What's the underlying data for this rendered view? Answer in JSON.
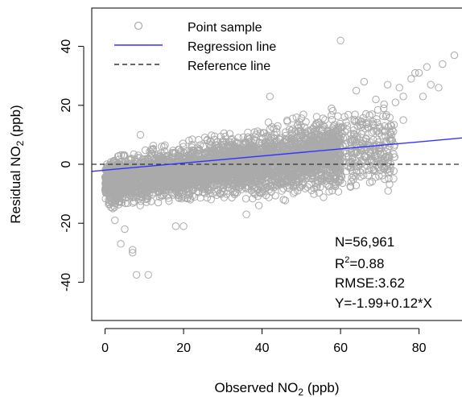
{
  "chart_data": {
    "type": "scatter",
    "xlabel": {
      "pre": "Observed NO",
      "sub": "2",
      "post": " (ppb)"
    },
    "ylabel": {
      "pre": "Residual NO",
      "sub": "2",
      "post": " (ppb)"
    },
    "xlim": [
      -3.4,
      93
    ],
    "ylim": [
      -53,
      53
    ],
    "xticks": [
      0,
      20,
      40,
      60,
      80
    ],
    "yticks": [
      -40,
      -20,
      0,
      20,
      40
    ],
    "grid": false,
    "legend": {
      "placement": "top-left",
      "entries": [
        {
          "label": "Point sample",
          "kind": "point",
          "color": "#aaaaaa"
        },
        {
          "label": "Regression line",
          "kind": "line",
          "color": "#3333ff"
        },
        {
          "label": "Reference line",
          "kind": "dashed",
          "color": "#333333"
        }
      ]
    },
    "regression": {
      "intercept": -1.99,
      "slope": 0.12,
      "color": "#3333ff"
    },
    "reference": {
      "y": 0,
      "color": "#333333"
    },
    "stats": {
      "n": "N=56,961",
      "r2": {
        "pre": "R",
        "sup": "2",
        "post": "=0.88"
      },
      "rmse": "RMSE:3.62",
      "eq": "Y=-1.99+0.12*X"
    },
    "point_color": "#aaaaaa",
    "highlight_points": [
      {
        "x": 8,
        "y": -37.5
      },
      {
        "x": 4,
        "y": -27
      },
      {
        "x": 2.5,
        "y": -19
      },
      {
        "x": 7,
        "y": -29
      },
      {
        "x": 7,
        "y": -30
      },
      {
        "x": 11,
        "y": -37.5
      },
      {
        "x": 60,
        "y": 42
      },
      {
        "x": 89,
        "y": 37
      },
      {
        "x": 86,
        "y": 34
      },
      {
        "x": 82,
        "y": 33
      },
      {
        "x": 80,
        "y": 31
      },
      {
        "x": 79,
        "y": 31
      },
      {
        "x": 83,
        "y": 27
      },
      {
        "x": 78,
        "y": 29
      },
      {
        "x": 75,
        "y": 26
      },
      {
        "x": 72,
        "y": 27
      },
      {
        "x": 66,
        "y": 28
      },
      {
        "x": 81,
        "y": 23
      },
      {
        "x": 85,
        "y": 26
      },
      {
        "x": 74,
        "y": 21
      },
      {
        "x": 76,
        "y": 23
      },
      {
        "x": 71,
        "y": 19
      },
      {
        "x": 69,
        "y": 22
      },
      {
        "x": 76,
        "y": 15
      },
      {
        "x": 73,
        "y": 13
      },
      {
        "x": 68,
        "y": 17
      },
      {
        "x": 64,
        "y": 25
      },
      {
        "x": 57,
        "y": -5
      },
      {
        "x": 52,
        "y": -7
      },
      {
        "x": 36,
        "y": -17
      },
      {
        "x": 18,
        "y": -21
      },
      {
        "x": 20,
        "y": -21
      },
      {
        "x": 42,
        "y": 23
      },
      {
        "x": 9,
        "y": 10
      },
      {
        "x": 5,
        "y": -22
      },
      {
        "x": 3,
        "y": -12
      }
    ]
  }
}
